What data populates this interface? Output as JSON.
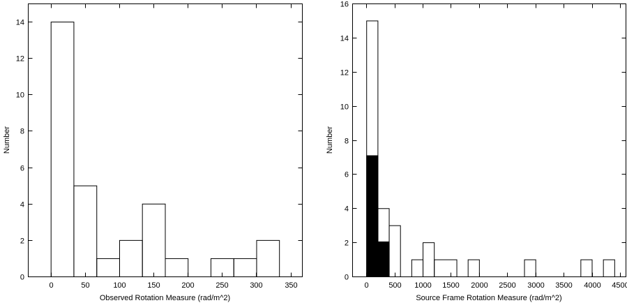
{
  "chart_data": [
    {
      "type": "histogram",
      "title": "",
      "xlabel": "Observed Rotation Measure (rad/m^2)",
      "ylabel": "Number",
      "xlim": [
        -33.3,
        366.7
      ],
      "ylim": [
        0,
        15
      ],
      "xticks": [
        0,
        50,
        100,
        150,
        200,
        250,
        300,
        350
      ],
      "yticks": [
        0,
        2,
        4,
        6,
        8,
        10,
        12,
        14
      ],
      "grid": false,
      "series": [
        {
          "fill": "none",
          "bins": [
            {
              "x0": 0,
              "x1": 33.3,
              "count": 14
            },
            {
              "x0": 33.3,
              "x1": 66.7,
              "count": 5
            },
            {
              "x0": 66.7,
              "x1": 100,
              "count": 1
            },
            {
              "x0": 100,
              "x1": 133.3,
              "count": 2
            },
            {
              "x0": 133.3,
              "x1": 166.7,
              "count": 4
            },
            {
              "x0": 166.7,
              "x1": 200,
              "count": 1
            },
            {
              "x0": 200,
              "x1": 233.3,
              "count": 0
            },
            {
              "x0": 233.3,
              "x1": 266.7,
              "count": 1
            },
            {
              "x0": 266.7,
              "x1": 300,
              "count": 1
            },
            {
              "x0": 300,
              "x1": 333.3,
              "count": 2
            }
          ]
        }
      ]
    },
    {
      "type": "histogram",
      "title": "",
      "xlabel": "Source Frame Rotation Measure (rad/m^2)",
      "ylabel": "Number",
      "xlim": [
        -250,
        4600
      ],
      "ylim": [
        0,
        16
      ],
      "xticks": [
        0,
        500,
        1000,
        1500,
        2000,
        2500,
        3000,
        3500,
        4000,
        4500
      ],
      "yticks": [
        0,
        2,
        4,
        6,
        8,
        10,
        12,
        14,
        16
      ],
      "grid": false,
      "series": [
        {
          "fill": "none",
          "bins": [
            {
              "x0": 0,
              "x1": 200,
              "count": 15
            },
            {
              "x0": 200,
              "x1": 400,
              "count": 4
            },
            {
              "x0": 400,
              "x1": 600,
              "count": 3
            },
            {
              "x0": 800,
              "x1": 1000,
              "count": 1
            },
            {
              "x0": 1000,
              "x1": 1200,
              "count": 2
            },
            {
              "x0": 1200,
              "x1": 1600,
              "count": 1
            },
            {
              "x0": 1800,
              "x1": 2000,
              "count": 1
            },
            {
              "x0": 2800,
              "x1": 3000,
              "count": 1
            },
            {
              "x0": 3800,
              "x1": 4000,
              "count": 1
            },
            {
              "x0": 4200,
              "x1": 4400,
              "count": 1
            }
          ]
        },
        {
          "fill": "#000000",
          "bins": [
            {
              "x0": 0,
              "x1": 200,
              "count": 7.1
            },
            {
              "x0": 200,
              "x1": 400,
              "count": 2.05
            }
          ]
        }
      ]
    }
  ]
}
